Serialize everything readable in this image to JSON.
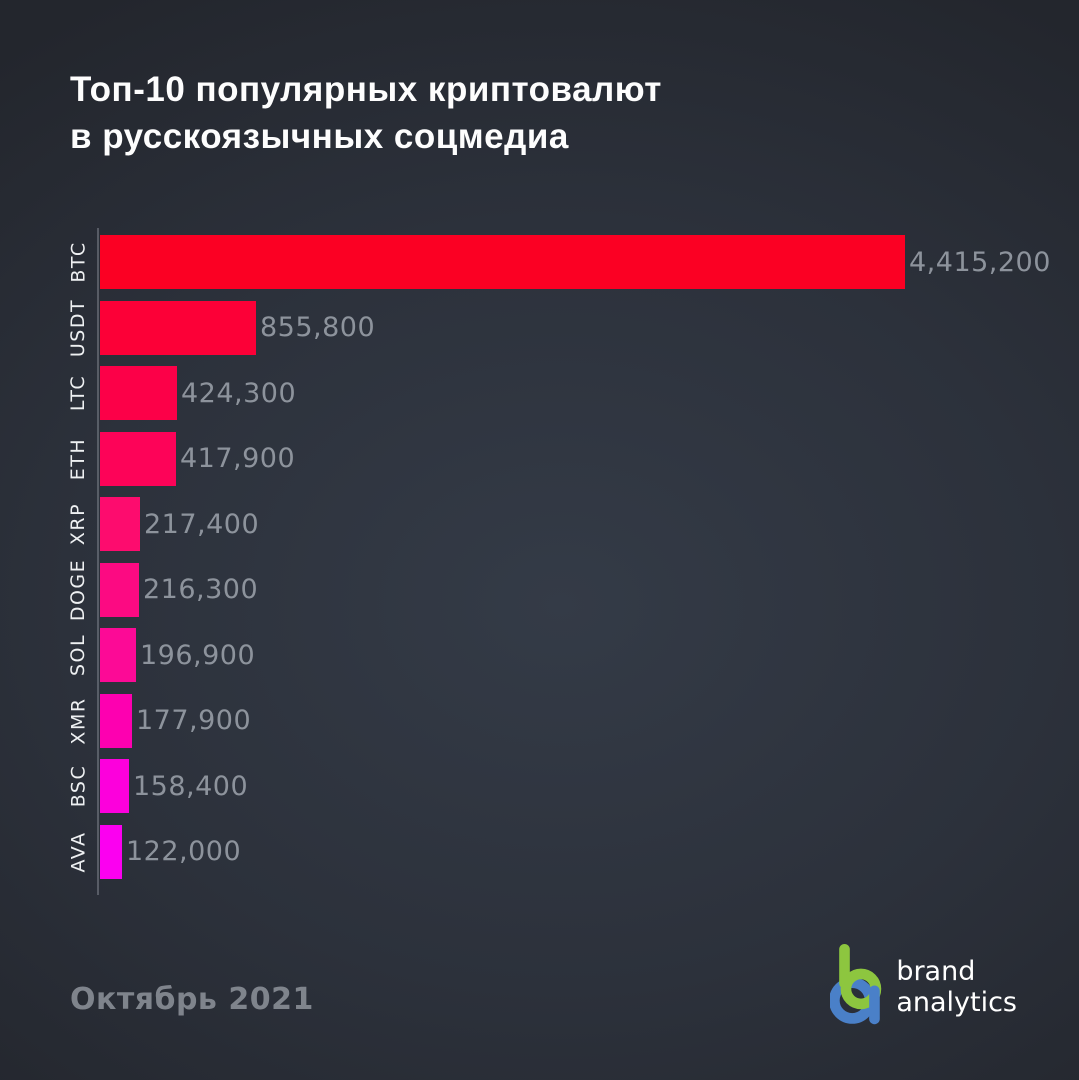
{
  "title": {
    "line1": "Топ-10 популярных криптовалют",
    "line2": "в русскоязычных соцмедиа"
  },
  "footer": {
    "period_label": "Октябрь 2021"
  },
  "logo": {
    "line1": "brand",
    "line2": "analytics",
    "green": "#8dc63f",
    "blue": "#4a80c8"
  },
  "chart_data": {
    "type": "bar",
    "orientation": "horizontal",
    "title": "Топ-10 популярных криптовалют в русскоязычных соцмедиа",
    "categories": [
      "BTC",
      "USDT",
      "LTC",
      "ETH",
      "XRP",
      "DOGE",
      "SOL",
      "XMR",
      "BSC",
      "AVA"
    ],
    "values": [
      4415200,
      855800,
      424300,
      417900,
      217400,
      216300,
      196900,
      177900,
      158400,
      122000
    ],
    "value_labels": [
      "4,415,200",
      "855,800",
      "424,300",
      "417,900",
      "217,400",
      "216,300",
      "196,900",
      "177,900",
      "158,400",
      "122,000"
    ],
    "bar_colors": [
      "#fb0023",
      "#fc0037",
      "#fc0048",
      "#fd0358",
      "#fd0c6e",
      "#fc0a82",
      "#fc0a96",
      "#fd00b0",
      "#fc00dc",
      "#fb00f0"
    ],
    "xlim": [
      0,
      4415200
    ],
    "grid": false,
    "legend": false,
    "axis_color": "#7d838c",
    "value_label_color": "#8d939c",
    "category_label_color": "#eef0f2",
    "subtitle_period": "Октябрь 2021"
  }
}
